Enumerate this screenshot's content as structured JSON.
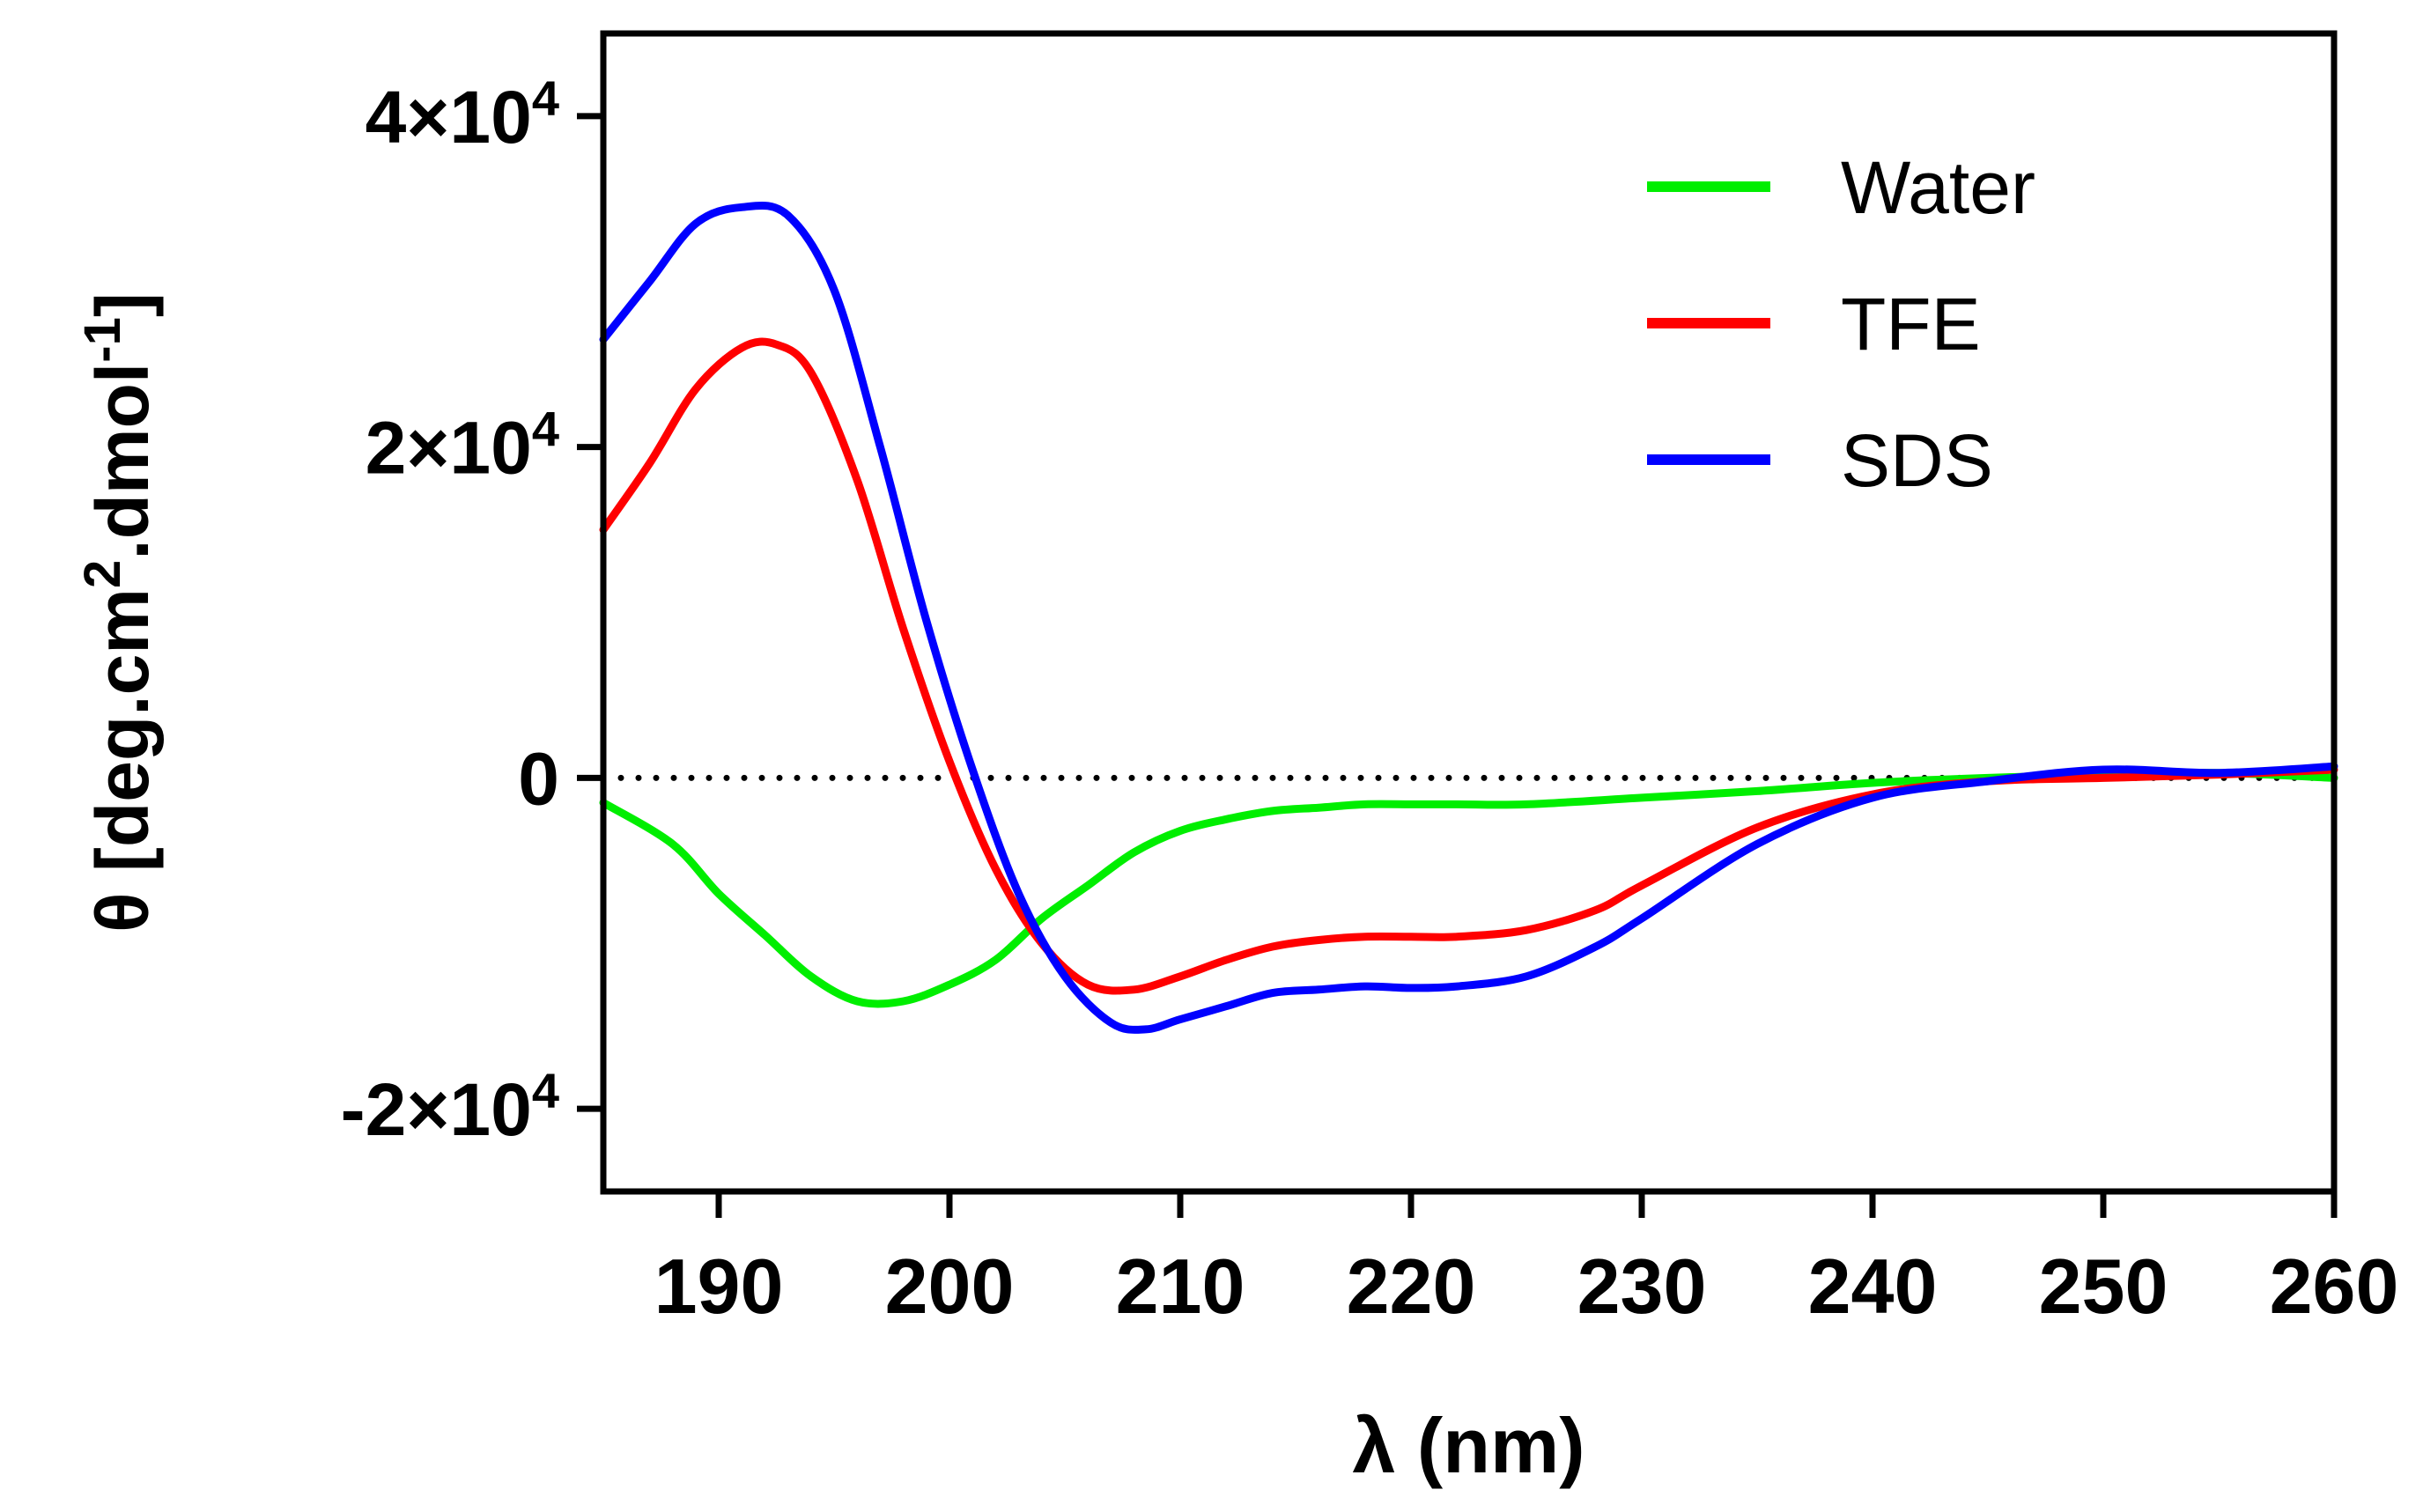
{
  "chart_data": {
    "type": "line",
    "title": "",
    "xlabel": "λ (nm)",
    "ylabel": {
      "prefix": "θ [deg.cm",
      "sup1": "2",
      "middle": ".dmol",
      "sup2": "-1",
      "suffix": "]"
    },
    "xlim": [
      185,
      260
    ],
    "ylim": [
      -25000,
      45000
    ],
    "x_ticks": [
      190,
      200,
      210,
      220,
      230,
      240,
      250,
      260
    ],
    "x_tick_labels": [
      "190",
      "200",
      "210",
      "220",
      "230",
      "240",
      "250",
      "260"
    ],
    "y_ticks": [
      {
        "value": 40000,
        "mantissa": "4×10",
        "exp": "4"
      },
      {
        "value": 20000,
        "mantissa": "2×10",
        "exp": "4"
      },
      {
        "value": 0,
        "mantissa": "0",
        "exp": ""
      },
      {
        "value": -20000,
        "mantissa": "-2×10",
        "exp": "4"
      }
    ],
    "zero_line": true,
    "legend_position": "top-right",
    "series": [
      {
        "name": "Water",
        "color": "#00ee00",
        "x": [
          185,
          188,
          190,
          192,
          194,
          196,
          198,
          200,
          202,
          204,
          206,
          208,
          210,
          212,
          214,
          216,
          218,
          220,
          222,
          225,
          230,
          235,
          240,
          245,
          250,
          255,
          260
        ],
        "y": [
          -1500,
          -4000,
          -7000,
          -9500,
          -12000,
          -13500,
          -13500,
          -12500,
          -11000,
          -8500,
          -6500,
          -4500,
          -3200,
          -2500,
          -2000,
          -1800,
          -1600,
          -1600,
          -1600,
          -1600,
          -1200,
          -800,
          -300,
          0,
          200,
          300,
          0
        ]
      },
      {
        "name": "TFE",
        "color": "#ff0000",
        "x": [
          185,
          187,
          189,
          191,
          192.5,
          194,
          196,
          198,
          200,
          202,
          204,
          206,
          208,
          210,
          212,
          214,
          216,
          218,
          220,
          222,
          225,
          228,
          230,
          235,
          240,
          245,
          250,
          255,
          260
        ],
        "y": [
          15000,
          19000,
          23500,
          26000,
          26200,
          24500,
          18000,
          9000,
          1000,
          -5500,
          -10000,
          -12500,
          -12800,
          -12000,
          -11000,
          -10200,
          -9800,
          -9600,
          -9600,
          -9600,
          -9200,
          -8000,
          -6500,
          -3000,
          -1000,
          -200,
          0,
          200,
          500
        ]
      },
      {
        "name": "SDS",
        "color": "#0000ff",
        "x": [
          185,
          187,
          189,
          191,
          193,
          195,
          197,
          199,
          201,
          203,
          205,
          207,
          208.5,
          210,
          212,
          214,
          216,
          218,
          220,
          222,
          225,
          228,
          230,
          235,
          240,
          245,
          250,
          255,
          260
        ],
        "y": [
          26500,
          30000,
          33500,
          34500,
          34000,
          29500,
          20000,
          9500,
          500,
          -7000,
          -12000,
          -14800,
          -15200,
          -14600,
          -13800,
          -13000,
          -12800,
          -12600,
          -12700,
          -12600,
          -12000,
          -10200,
          -8500,
          -4000,
          -1200,
          -200,
          500,
          300,
          700
        ]
      }
    ]
  }
}
